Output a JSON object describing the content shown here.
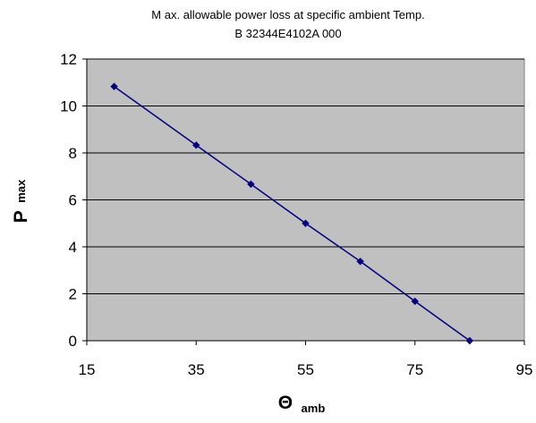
{
  "chart_data": {
    "type": "line",
    "title": "M ax. allowable power loss at specific ambient Temp.",
    "subtitle": "B 32344E4102A 000",
    "xlabel": "Θ",
    "xlabel_sub": "amb",
    "ylabel": "P",
    "ylabel_sub": "max",
    "xlim": [
      15,
      95
    ],
    "ylim": [
      0,
      12
    ],
    "xticks": [
      15,
      35,
      55,
      75,
      95
    ],
    "yticks": [
      0,
      2,
      4,
      6,
      8,
      10,
      12
    ],
    "grid": true,
    "legend": "none",
    "series": [
      {
        "x": [
          20,
          35,
          45,
          55,
          65,
          75,
          85
        ],
        "y": [
          10.83,
          8.33,
          6.67,
          5.0,
          3.38,
          1.68,
          0.0
        ],
        "color": "#000080"
      }
    ],
    "plot_background": "#c0c0c0",
    "grid_color": "#000000"
  }
}
